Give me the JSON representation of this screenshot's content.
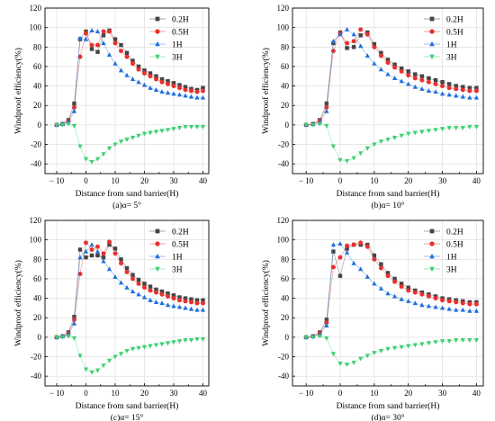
{
  "figure": {
    "background": "#ffffff",
    "axis_color": "#000000",
    "grid_color": "#d9d9d9"
  },
  "chart_data": [
    {
      "type": "line",
      "caption": "(a)α= 5°",
      "xlabel": "Distance from sand barrier(H)",
      "ylabel": "Windproof efficiency(%)",
      "xlim": [
        -14,
        42
      ],
      "ylim": [
        -50,
        120
      ],
      "xticks": [
        -10,
        0,
        10,
        20,
        30,
        40
      ],
      "yticks": [
        -40,
        -20,
        0,
        20,
        40,
        60,
        80,
        100,
        120
      ],
      "grid": true,
      "legend_position": "top-right",
      "x": [
        -10,
        -8,
        -6,
        -4,
        -2,
        0,
        2,
        4,
        6,
        8,
        10,
        12,
        14,
        16,
        18,
        20,
        22,
        24,
        26,
        28,
        30,
        32,
        34,
        36,
        38,
        40
      ],
      "series": [
        {
          "name": "0.2H",
          "color": "#444444",
          "marker": "square",
          "values": [
            0,
            1,
            5,
            22,
            88,
            96,
            78,
            75,
            92,
            97,
            88,
            82,
            74,
            66,
            60,
            56,
            53,
            50,
            47,
            45,
            43,
            41,
            39,
            37,
            36,
            38
          ]
        },
        {
          "name": "0.5H",
          "color": "#e8312e",
          "marker": "circle",
          "values": [
            0,
            1,
            4,
            18,
            70,
            94,
            82,
            82,
            96,
            96,
            84,
            76,
            70,
            63,
            57,
            53,
            50,
            47,
            44,
            42,
            40,
            38,
            36,
            35,
            34,
            35
          ]
        },
        {
          "name": "1H",
          "color": "#1f6fdc",
          "marker": "triangle-up",
          "values": [
            0,
            1,
            3,
            14,
            89,
            88,
            97,
            96,
            84,
            72,
            63,
            56,
            51,
            47,
            44,
            41,
            38,
            36,
            34,
            33,
            32,
            31,
            30,
            29,
            28,
            28
          ]
        },
        {
          "name": "3H",
          "color": "#3ecf72",
          "marker": "triangle-down",
          "values": [
            0,
            0,
            1,
            -1,
            -22,
            -35,
            -38,
            -35,
            -30,
            -24,
            -20,
            -17,
            -15,
            -13,
            -11,
            -9,
            -8,
            -7,
            -6,
            -5,
            -4,
            -3,
            -2,
            -2,
            -2,
            -2
          ]
        }
      ]
    },
    {
      "type": "line",
      "caption": "(b)α= 10°",
      "xlabel": "Distance from sand barrier(H)",
      "ylabel": "Windproof efficiency(%)",
      "xlim": [
        -14,
        42
      ],
      "ylim": [
        -50,
        120
      ],
      "xticks": [
        -10,
        0,
        10,
        20,
        30,
        40
      ],
      "yticks": [
        -40,
        -20,
        0,
        20,
        40,
        60,
        80,
        100,
        120
      ],
      "grid": true,
      "legend_position": "top-right",
      "x": [
        -10,
        -8,
        -6,
        -4,
        -2,
        0,
        2,
        4,
        6,
        8,
        10,
        12,
        14,
        16,
        18,
        20,
        22,
        24,
        26,
        28,
        30,
        32,
        34,
        36,
        38,
        40
      ],
      "series": [
        {
          "name": "0.2H",
          "color": "#444444",
          "marker": "square",
          "values": [
            0,
            1,
            5,
            22,
            84,
            95,
            79,
            80,
            92,
            95,
            83,
            74,
            67,
            62,
            58,
            55,
            52,
            50,
            48,
            46,
            44,
            42,
            40,
            39,
            38,
            38
          ]
        },
        {
          "name": "0.5H",
          "color": "#e8312e",
          "marker": "circle",
          "values": [
            0,
            1,
            4,
            18,
            76,
            94,
            84,
            86,
            98,
            93,
            80,
            71,
            64,
            59,
            55,
            51,
            48,
            46,
            44,
            42,
            40,
            38,
            37,
            36,
            35,
            35
          ]
        },
        {
          "name": "1H",
          "color": "#1f6fdc",
          "marker": "triangle-up",
          "values": [
            0,
            1,
            3,
            14,
            86,
            93,
            98,
            93,
            81,
            71,
            63,
            57,
            52,
            48,
            45,
            42,
            39,
            37,
            35,
            34,
            32,
            31,
            30,
            29,
            28,
            28
          ]
        },
        {
          "name": "3H",
          "color": "#3ecf72",
          "marker": "triangle-down",
          "values": [
            0,
            0,
            1,
            -1,
            -22,
            -36,
            -37,
            -34,
            -29,
            -24,
            -20,
            -17,
            -15,
            -13,
            -11,
            -9,
            -8,
            -7,
            -6,
            -5,
            -4,
            -3,
            -3,
            -3,
            -2,
            -2
          ]
        }
      ]
    },
    {
      "type": "line",
      "caption": "(c)α= 15°",
      "xlabel": "Distance from sand barrier(H)",
      "ylabel": "Windproof efficiency(%)",
      "xlim": [
        -14,
        42
      ],
      "ylim": [
        -50,
        120
      ],
      "xticks": [
        -10,
        0,
        10,
        20,
        30,
        40
      ],
      "yticks": [
        -40,
        -20,
        0,
        20,
        40,
        60,
        80,
        100,
        120
      ],
      "grid": true,
      "legend_position": "top-right",
      "x": [
        -10,
        -8,
        -6,
        -4,
        -2,
        0,
        2,
        4,
        6,
        8,
        10,
        12,
        14,
        16,
        18,
        20,
        22,
        24,
        26,
        28,
        30,
        32,
        34,
        36,
        38,
        40
      ],
      "series": [
        {
          "name": "0.2H",
          "color": "#444444",
          "marker": "square",
          "values": [
            0,
            1,
            5,
            21,
            90,
            82,
            84,
            84,
            82,
            95,
            91,
            80,
            71,
            64,
            59,
            55,
            52,
            49,
            47,
            45,
            43,
            41,
            40,
            39,
            38,
            38
          ]
        },
        {
          "name": "0.5H",
          "color": "#e8312e",
          "marker": "circle",
          "values": [
            0,
            1,
            4,
            18,
            65,
            97,
            90,
            93,
            86,
            98,
            86,
            76,
            67,
            60,
            55,
            51,
            48,
            46,
            44,
            42,
            40,
            38,
            37,
            36,
            35,
            35
          ]
        },
        {
          "name": "1H",
          "color": "#1f6fdc",
          "marker": "triangle-up",
          "values": [
            0,
            1,
            3,
            14,
            82,
            88,
            95,
            88,
            78,
            70,
            62,
            56,
            51,
            47,
            44,
            41,
            38,
            36,
            35,
            33,
            32,
            31,
            30,
            29,
            28,
            28
          ]
        },
        {
          "name": "3H",
          "color": "#3ecf72",
          "marker": "triangle-down",
          "values": [
            0,
            0,
            1,
            -1,
            -19,
            -33,
            -36,
            -34,
            -29,
            -24,
            -20,
            -17,
            -14,
            -12,
            -11,
            -10,
            -9,
            -8,
            -7,
            -6,
            -5,
            -4,
            -3,
            -3,
            -2,
            -2
          ]
        }
      ]
    },
    {
      "type": "line",
      "caption": "(d)α= 30°",
      "xlabel": "Distance from sand barrier(H)",
      "ylabel": "Windproof efficiency(%)",
      "xlim": [
        -14,
        42
      ],
      "ylim": [
        -50,
        120
      ],
      "xticks": [
        -10,
        0,
        10,
        20,
        30,
        40
      ],
      "yticks": [
        -40,
        -20,
        0,
        20,
        40,
        60,
        80,
        100,
        120
      ],
      "grid": true,
      "legend_position": "top-right",
      "x": [
        -10,
        -8,
        -6,
        -4,
        -2,
        0,
        2,
        4,
        6,
        8,
        10,
        12,
        14,
        16,
        18,
        20,
        22,
        24,
        26,
        28,
        30,
        32,
        34,
        36,
        38,
        40
      ],
      "series": [
        {
          "name": "0.2H",
          "color": "#444444",
          "marker": "square",
          "values": [
            0,
            1,
            5,
            18,
            88,
            63,
            91,
            95,
            95,
            95,
            84,
            75,
            66,
            60,
            55,
            51,
            48,
            46,
            44,
            42,
            40,
            39,
            38,
            37,
            36,
            36
          ]
        },
        {
          "name": "0.5H",
          "color": "#e8312e",
          "marker": "circle",
          "values": [
            0,
            1,
            4,
            15,
            72,
            82,
            94,
            95,
            97,
            93,
            80,
            71,
            63,
            57,
            52,
            48,
            46,
            44,
            42,
            40,
            38,
            37,
            36,
            35,
            34,
            34
          ]
        },
        {
          "name": "1H",
          "color": "#1f6fdc",
          "marker": "triangle-up",
          "values": [
            0,
            1,
            3,
            12,
            95,
            96,
            87,
            76,
            70,
            62,
            55,
            50,
            45,
            42,
            39,
            37,
            35,
            33,
            32,
            31,
            30,
            29,
            28,
            28,
            27,
            27
          ]
        },
        {
          "name": "3H",
          "color": "#3ecf72",
          "marker": "triangle-down",
          "values": [
            0,
            0,
            1,
            -1,
            -17,
            -27,
            -28,
            -26,
            -22,
            -19,
            -16,
            -14,
            -12,
            -11,
            -10,
            -9,
            -8,
            -7,
            -6,
            -5,
            -4,
            -4,
            -3,
            -3,
            -3,
            -3
          ]
        }
      ]
    }
  ]
}
